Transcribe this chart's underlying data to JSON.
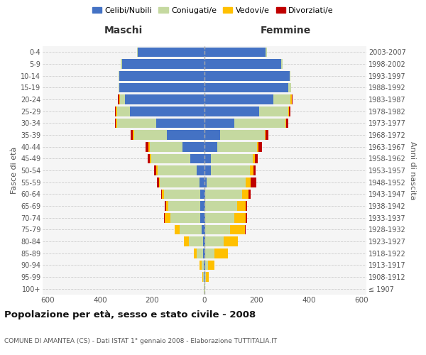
{
  "age_groups": [
    "100+",
    "95-99",
    "90-94",
    "85-89",
    "80-84",
    "75-79",
    "70-74",
    "65-69",
    "60-64",
    "55-59",
    "50-54",
    "45-49",
    "40-44",
    "35-39",
    "30-34",
    "25-29",
    "20-24",
    "15-19",
    "10-14",
    "5-9",
    "0-4"
  ],
  "birth_years": [
    "≤ 1907",
    "1908-1912",
    "1913-1917",
    "1918-1922",
    "1923-1927",
    "1928-1932",
    "1933-1937",
    "1938-1942",
    "1943-1947",
    "1948-1952",
    "1953-1957",
    "1958-1962",
    "1963-1967",
    "1968-1972",
    "1973-1977",
    "1978-1982",
    "1983-1987",
    "1988-1992",
    "1993-1997",
    "1998-2002",
    "2003-2007"
  ],
  "colors": {
    "celibi": "#4472c4",
    "coniugati": "#c5d9a0",
    "vedovi": "#ffc000",
    "divorziati": "#c00000"
  },
  "males": {
    "celibi": [
      1,
      2,
      3,
      5,
      5,
      10,
      15,
      15,
      15,
      20,
      30,
      55,
      85,
      145,
      185,
      285,
      305,
      325,
      325,
      315,
      255
    ],
    "coniugati": [
      1,
      3,
      8,
      25,
      55,
      85,
      115,
      125,
      140,
      150,
      150,
      150,
      125,
      125,
      150,
      50,
      18,
      5,
      5,
      5,
      3
    ],
    "vedovi": [
      1,
      3,
      8,
      12,
      18,
      18,
      22,
      8,
      8,
      4,
      4,
      4,
      4,
      4,
      4,
      4,
      4,
      0,
      0,
      0,
      0
    ],
    "divorziati": [
      0,
      0,
      0,
      0,
      0,
      0,
      4,
      4,
      4,
      8,
      8,
      8,
      12,
      8,
      4,
      4,
      4,
      0,
      0,
      0,
      0
    ]
  },
  "females": {
    "celibi": [
      1,
      1,
      2,
      4,
      4,
      4,
      4,
      4,
      4,
      8,
      25,
      25,
      50,
      60,
      115,
      210,
      265,
      320,
      325,
      295,
      235
    ],
    "coniugati": [
      1,
      4,
      12,
      35,
      70,
      95,
      110,
      120,
      140,
      150,
      150,
      160,
      150,
      170,
      195,
      110,
      65,
      12,
      5,
      5,
      3
    ],
    "vedovi": [
      1,
      12,
      25,
      50,
      55,
      55,
      45,
      35,
      25,
      18,
      12,
      8,
      8,
      4,
      4,
      4,
      4,
      0,
      0,
      0,
      0
    ],
    "divorziati": [
      0,
      0,
      0,
      0,
      0,
      4,
      4,
      4,
      8,
      22,
      8,
      12,
      12,
      12,
      8,
      4,
      4,
      0,
      0,
      0,
      0
    ]
  },
  "xlim": 620,
  "title": "Popolazione per età, sesso e stato civile - 2008",
  "subtitle": "COMUNE DI AMANTEA (CS) - Dati ISTAT 1° gennaio 2008 - Elaborazione TUTTITALIA.IT",
  "xlabel_left": "Maschi",
  "xlabel_right": "Femmine",
  "ylabel_left": "Fasce di età",
  "ylabel_right": "Anni di nascita",
  "legend_labels": [
    "Celibi/Nubili",
    "Coniugati/e",
    "Vedovi/e",
    "Divorziati/e"
  ],
  "bg_color": "#f5f5f5"
}
